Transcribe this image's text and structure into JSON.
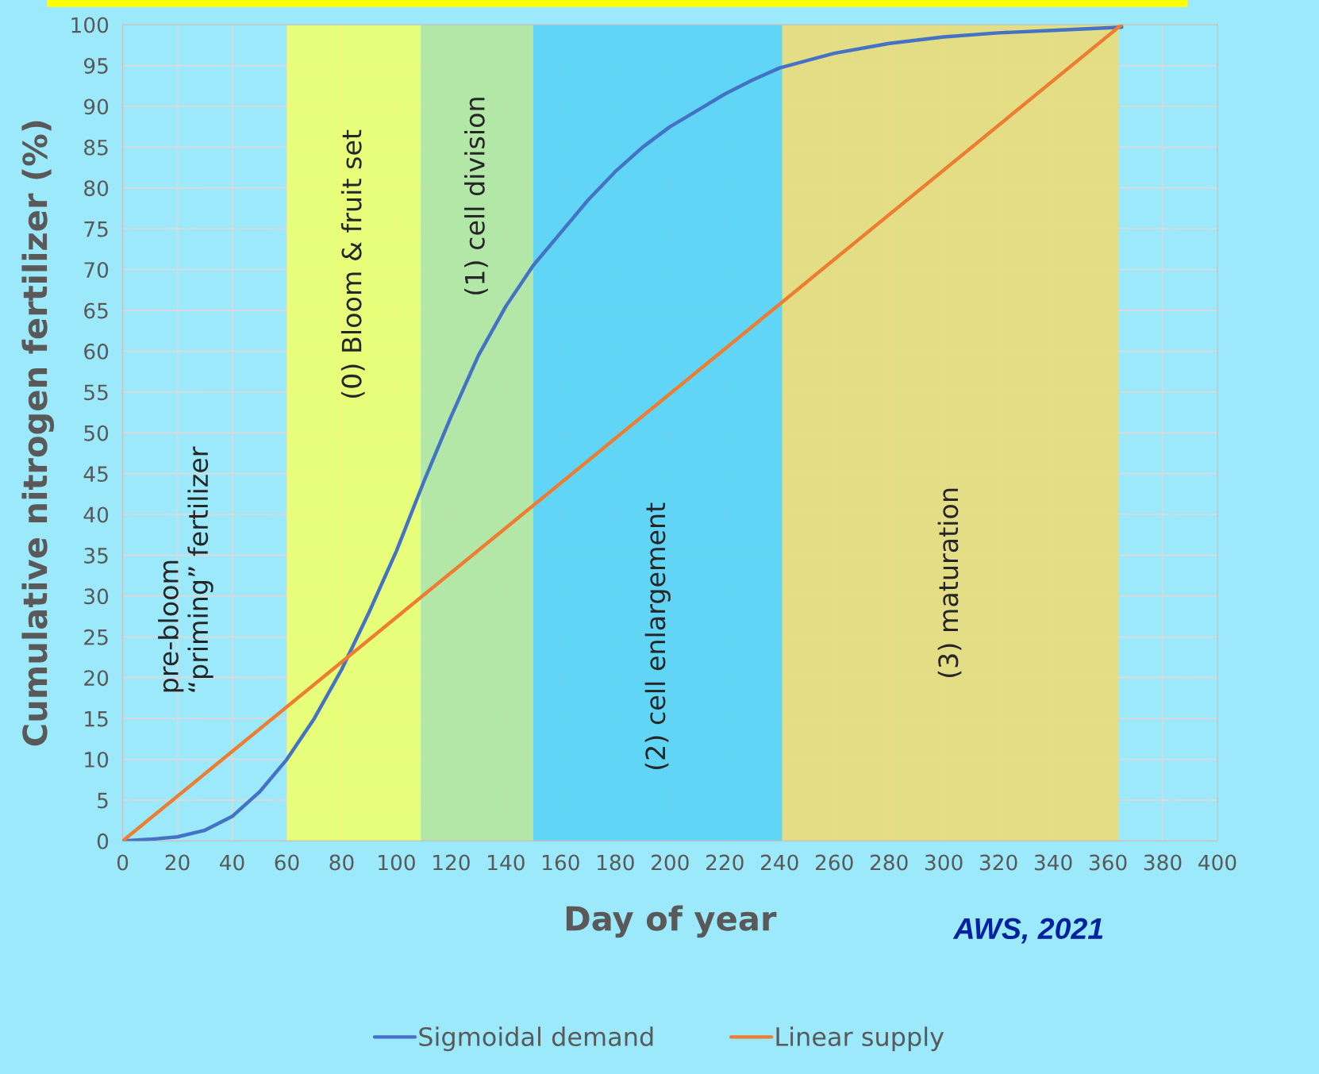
{
  "chart_data": {
    "type": "line",
    "xlabel": "Day of year",
    "ylabel": "Cumulative nitrogen fertilizer (%)",
    "series": [
      {
        "name": "Sigmoidal demand",
        "color": "#4472c4",
        "x": [
          0,
          10,
          20,
          30,
          40,
          50,
          60,
          70,
          80,
          90,
          100,
          110,
          120,
          130,
          140,
          150,
          160,
          170,
          180,
          190,
          200,
          210,
          220,
          230,
          240,
          260,
          280,
          300,
          320,
          340,
          365
        ],
        "values": [
          0,
          0.2,
          0.5,
          1.3,
          3,
          6,
          10,
          15,
          21,
          28,
          35.5,
          44,
          52,
          59.5,
          65.5,
          70.5,
          74.5,
          78.5,
          82,
          85,
          87.5,
          89.5,
          91.5,
          93.2,
          94.7,
          96.5,
          97.7,
          98.5,
          99,
          99.3,
          99.7
        ]
      },
      {
        "name": "Linear supply",
        "color": "#ed7d31",
        "x": [
          0,
          365
        ],
        "values": [
          0,
          100
        ]
      }
    ],
    "xlim": [
      0,
      400
    ],
    "xticks": [
      0,
      20,
      40,
      60,
      80,
      100,
      120,
      140,
      160,
      180,
      200,
      220,
      240,
      260,
      280,
      300,
      320,
      340,
      360,
      380,
      400
    ],
    "ylim": [
      0,
      100
    ],
    "yticks": [
      0,
      5,
      10,
      15,
      20,
      25,
      30,
      35,
      40,
      45,
      50,
      55,
      60,
      65,
      70,
      75,
      80,
      85,
      90,
      95,
      100
    ],
    "bands": [
      {
        "axis": "x",
        "from": 60,
        "to": 109,
        "label": "(0) Bloom & fruit set",
        "color": "#eeff70"
      },
      {
        "axis": "x",
        "from": 109,
        "to": 150,
        "label": "(1) cell division",
        "color": "#b4e6a0"
      },
      {
        "axis": "x",
        "from": 150,
        "to": 241,
        "label": "(2) cell enlargement",
        "color": "#5cd2f5"
      },
      {
        "axis": "x",
        "from": 241,
        "to": 364,
        "label": "(3) maturation",
        "color": "#e9dc7c"
      }
    ],
    "annotations": [
      "pre-bloom\n“priming” fertilizer",
      "AWS, 2021"
    ],
    "grid": true,
    "legend": "bottom",
    "marker": "none",
    "line_style": "solid"
  }
}
